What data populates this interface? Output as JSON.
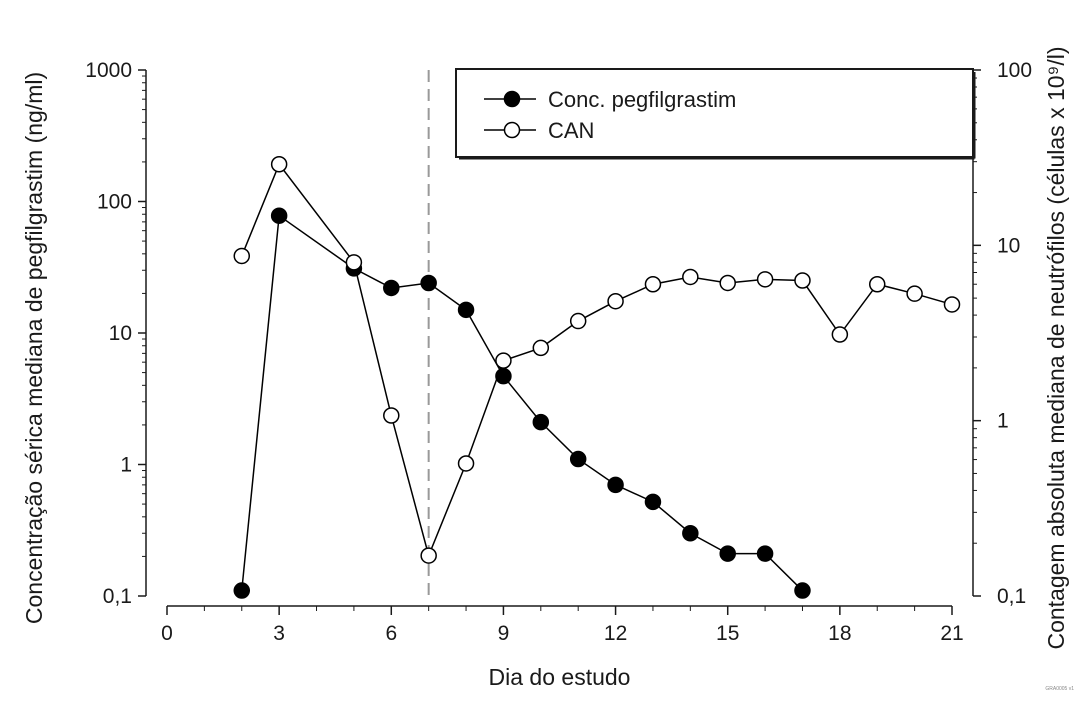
{
  "chart_data": {
    "type": "line",
    "title": "",
    "xlabel": "Dia do estudo",
    "ylabel_left": "Concentração sérica mediana de pegfilgrastim (ng/ml)",
    "ylabel_right": "Contagem absoluta mediana de neutrófilos (células x 10⁹/l)",
    "xlim": [
      0,
      21
    ],
    "x_ticks": [
      "0",
      "3",
      "6",
      "9",
      "12",
      "15",
      "18",
      "21"
    ],
    "x_tick_values": [
      0,
      3,
      6,
      9,
      12,
      15,
      18,
      21
    ],
    "y_left_scale": "log",
    "y_left_lim": [
      0.1,
      1000
    ],
    "y_left_ticks": [
      "0,1",
      "1",
      "10",
      "100",
      "1000"
    ],
    "y_left_tick_values": [
      0.1,
      1,
      10,
      100,
      1000
    ],
    "y_right_scale": "log",
    "y_right_lim": [
      0.1,
      100
    ],
    "y_right_ticks": [
      "0,1",
      "1",
      "10",
      "100"
    ],
    "y_right_tick_values": [
      0.1,
      1,
      10,
      100
    ],
    "vertical_reference_line": {
      "x": 7,
      "style": "dashed",
      "color": "#999999"
    },
    "legend_position": "top-right",
    "grid": false,
    "series": [
      {
        "name": "Conc. pegfilgrastim",
        "axis": "left",
        "marker": "filled-circle",
        "color": "#000000",
        "x": [
          2,
          3,
          5,
          6,
          7,
          8,
          9,
          10,
          11,
          12,
          13,
          14,
          15,
          16,
          17
        ],
        "y": [
          0.11,
          78,
          31,
          22,
          24,
          15,
          4.7,
          2.1,
          1.1,
          0.7,
          0.52,
          0.3,
          0.21,
          0.21,
          0.11
        ]
      },
      {
        "name": "CAN",
        "axis": "right",
        "marker": "open-circle",
        "color": "#000000",
        "x": [
          2,
          3,
          5,
          6,
          7,
          8,
          9,
          10,
          11,
          12,
          13,
          14,
          15,
          16,
          17,
          18,
          19,
          20,
          21
        ],
        "y": [
          8.7,
          29,
          8.0,
          1.07,
          0.17,
          0.57,
          2.2,
          2.6,
          3.7,
          4.8,
          6.0,
          6.6,
          6.1,
          6.4,
          6.3,
          3.1,
          6.0,
          5.3,
          4.6
        ]
      }
    ]
  },
  "watermark": "GRA0005 v1"
}
